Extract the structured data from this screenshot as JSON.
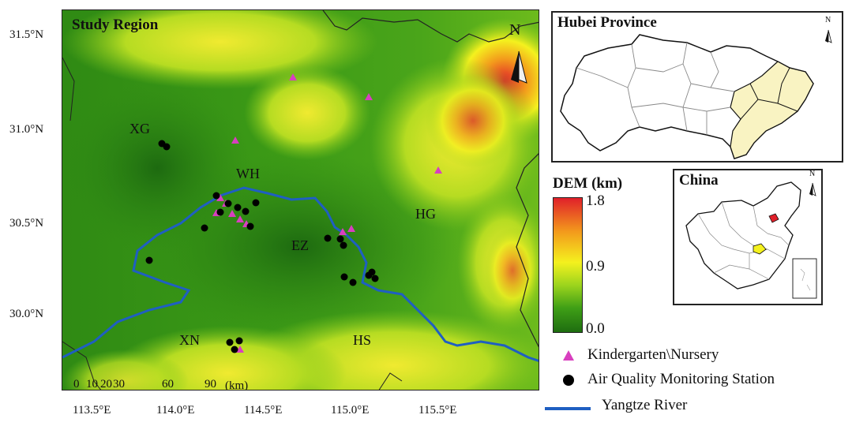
{
  "main_map": {
    "title": "Study Region",
    "north_label": "N",
    "y_ticks": [
      {
        "label": "31.5°N"
      },
      {
        "label": "31.0°N"
      },
      {
        "label": "30.5°N"
      },
      {
        "label": "30.0°N"
      }
    ],
    "x_ticks": [
      {
        "label": "113.5°E"
      },
      {
        "label": "114.0°E"
      },
      {
        "label": "114.5°E"
      },
      {
        "label": "115.0°E"
      },
      {
        "label": "115.5°E"
      }
    ],
    "scale_bar": {
      "labels": [
        "0",
        "10",
        "20",
        "30",
        "60",
        "90"
      ],
      "unit": "(km)"
    },
    "region_labels": [
      {
        "id": "xg",
        "text": "XG"
      },
      {
        "id": "wh",
        "text": "WH"
      },
      {
        "id": "ez",
        "text": "EZ"
      },
      {
        "id": "hg",
        "text": "HG"
      },
      {
        "id": "xn",
        "text": "XN"
      },
      {
        "id": "hs",
        "text": "HS"
      }
    ]
  },
  "hubei_inset": {
    "title": "Hubei Province",
    "north_label": "N",
    "highlight_color": "#f9f3c2"
  },
  "china_inset": {
    "title": "China",
    "north_label": "N"
  },
  "dem_legend": {
    "title": "DEM (km)",
    "max_label": "1.8",
    "mid_label": "0.9",
    "min_label": "0.0",
    "colors": [
      "#e0202a",
      "#f39a1c",
      "#f4f11e",
      "#9cd41d",
      "#3f9f16",
      "#1e6d10"
    ]
  },
  "legend": {
    "kindergarten": {
      "label": "Kindergarten\\Nursery",
      "color": "#d83fbf"
    },
    "station": {
      "label": "Air Quality Monitoring Station",
      "color": "#000000"
    },
    "river": {
      "label": "Yangtze River",
      "color": "#1f5fc2"
    }
  }
}
